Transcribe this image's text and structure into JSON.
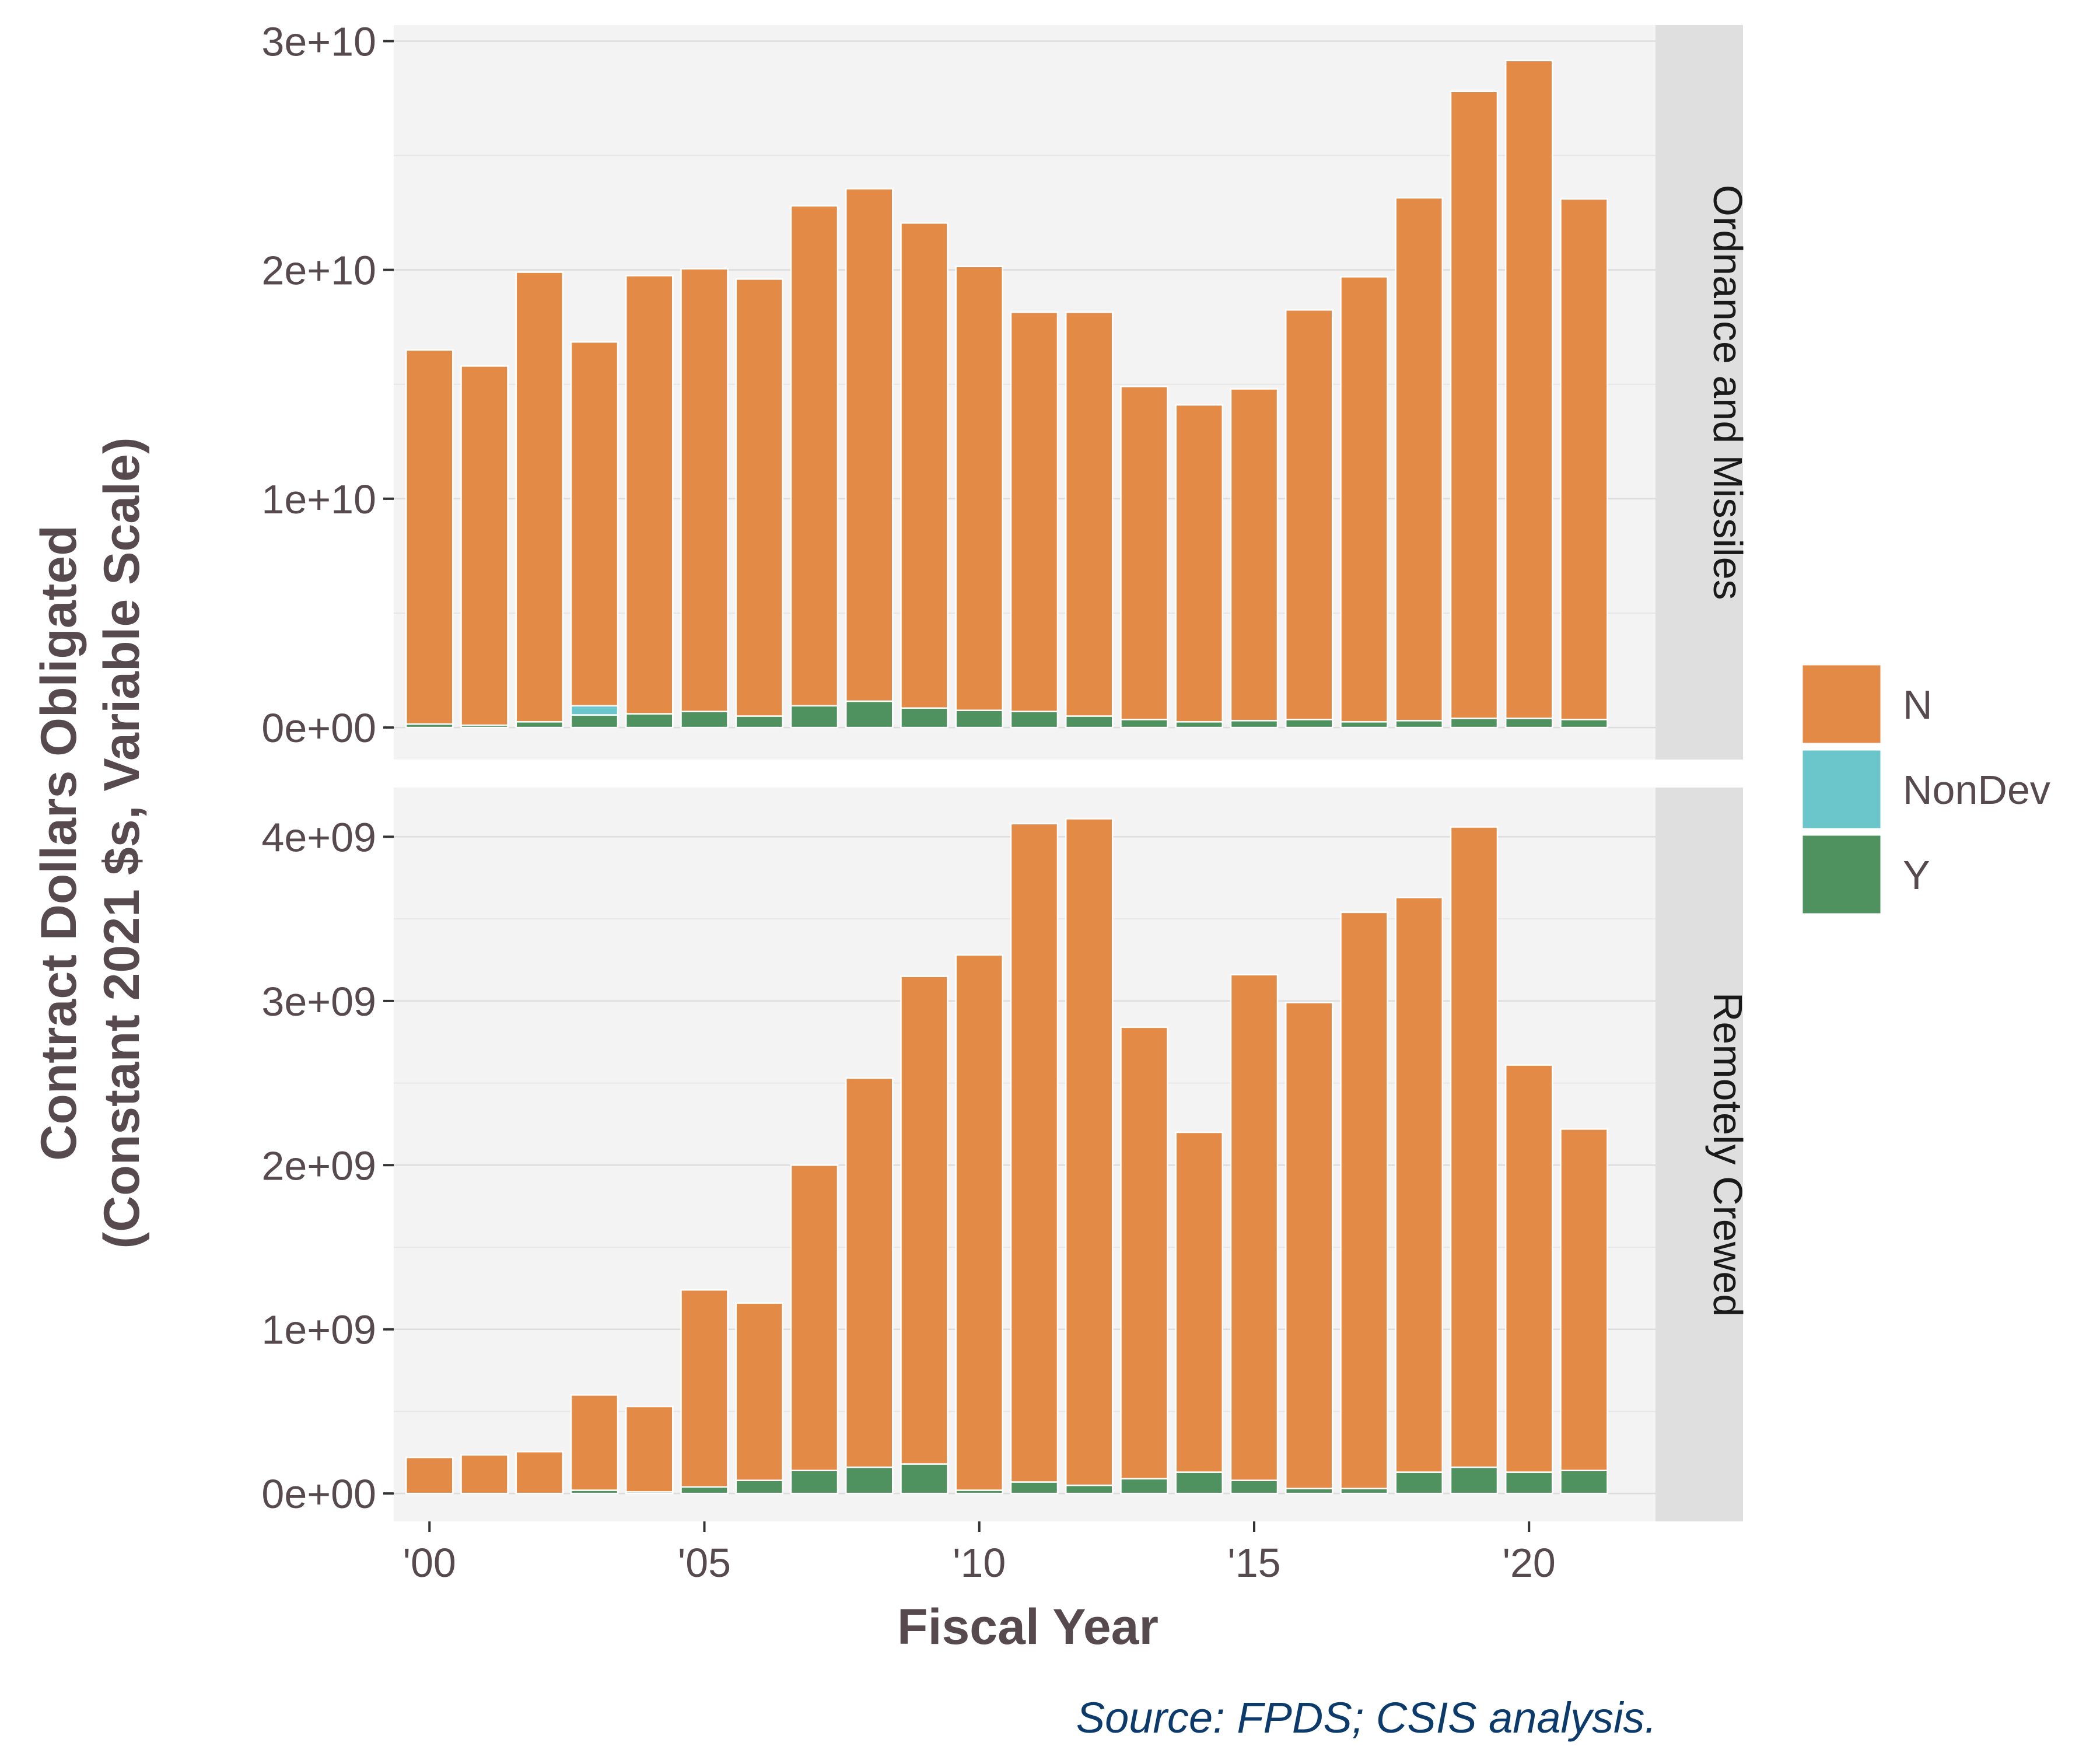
{
  "chart_data": {
    "type": "bar",
    "stacked": true,
    "xlabel": "Fiscal Year",
    "ylabel": "Contract Dollars Obligated\n(Constant 2021 $s, Variable Scale)",
    "caption": "Source: FPDS; CSIS analysis.",
    "legend_position": "right",
    "grid": true,
    "colors": {
      "N": "#E48A47",
      "NonDev": "#6AC6CB",
      "Y": "#4F9260",
      "panel_bg": "#F3F3F3",
      "strip_bg": "#DFDFDF",
      "axis_text": "#574A4F",
      "caption": "#0B3A6B"
    },
    "x": [
      2000,
      2001,
      2002,
      2003,
      2004,
      2005,
      2006,
      2007,
      2008,
      2009,
      2010,
      2011,
      2012,
      2013,
      2014,
      2015,
      2016,
      2017,
      2018,
      2019,
      2020,
      2021
    ],
    "x_ticks": [
      2000,
      2005,
      2010,
      2015,
      2020
    ],
    "x_tick_labels": [
      "'00",
      "'05",
      "'10",
      "'15",
      "'20"
    ],
    "xlim": [
      1999.35,
      2022.3
    ],
    "legend": {
      "items": [
        {
          "key": "N",
          "label": "N"
        },
        {
          "key": "NonDev",
          "label": "NonDev"
        },
        {
          "key": "Y",
          "label": "Y"
        }
      ]
    },
    "panels": [
      {
        "strip_label": "Ordnance and Missiles",
        "ylim": [
          -1400000000.0,
          30700000000.0
        ],
        "y_ticks": [
          0,
          10000000000.0,
          20000000000.0,
          30000000000.0
        ],
        "y_tick_labels": [
          "0e+00",
          "1e+10",
          "2e+10",
          "3e+10"
        ],
        "series": [
          {
            "name": "Y",
            "values": [
              150000000.0,
              100000000.0,
              250000000.0,
              550000000.0,
              600000000.0,
              700000000.0,
              500000000.0,
              950000000.0,
              1150000000.0,
              850000000.0,
              750000000.0,
              700000000.0,
              500000000.0,
              350000000.0,
              250000000.0,
              300000000.0,
              350000000.0,
              250000000.0,
              300000000.0,
              400000000.0,
              400000000.0,
              350000000.0
            ]
          },
          {
            "name": "NonDev",
            "values": [
              0,
              0,
              0,
              400000000.0,
              0,
              0,
              0,
              0,
              0,
              0,
              0,
              0,
              0,
              0,
              0,
              0,
              0,
              0,
              0,
              0,
              0,
              0
            ]
          },
          {
            "name": "N",
            "values": [
              16350000000.0,
              15700000000.0,
              19650000000.0,
              15900000000.0,
              19150000000.0,
              19350000000.0,
              19100000000.0,
              21850000000.0,
              22400000000.0,
              21200000000.0,
              19400000000.0,
              17450000000.0,
              17650000000.0,
              14550000000.0,
              13850000000.0,
              14500000000.0,
              17900000000.0,
              19450000000.0,
              22850000000.0,
              27400000000.0,
              28750000000.0,
              22750000000.0
            ]
          }
        ]
      },
      {
        "strip_label": "Remotely Crewed",
        "ylim": [
          -170000000.0,
          4300000000.0
        ],
        "y_ticks": [
          0,
          1000000000.0,
          2000000000.0,
          3000000000.0,
          4000000000.0
        ],
        "y_tick_labels": [
          "0e+00",
          "1e+09",
          "2e+09",
          "3e+09",
          "4e+09"
        ],
        "series": [
          {
            "name": "Y",
            "values": [
              0,
              0,
              0,
              20000000.0,
              10000000.0,
              40000000.0,
              80000000.0,
              140000000.0,
              160000000.0,
              180000000.0,
              20000000.0,
              70000000.0,
              50000000.0,
              90000000.0,
              130000000.0,
              80000000.0,
              30000000.0,
              30000000.0,
              130000000.0,
              160000000.0,
              130000000.0,
              140000000.0
            ]
          },
          {
            "name": "NonDev",
            "values": [
              0,
              0,
              0,
              0,
              0,
              0,
              0,
              0,
              0,
              0,
              0,
              0,
              0,
              0,
              0,
              0,
              0,
              0,
              0,
              0,
              0,
              0
            ]
          },
          {
            "name": "N",
            "values": [
              220000000.0,
              235000000.0,
              255000000.0,
              580000000.0,
              520000000.0,
              1200000000.0,
              1080000000.0,
              1860000000.0,
              2370000000.0,
              2970000000.0,
              3260000000.0,
              4010000000.0,
              4060000000.0,
              2750000000.0,
              2070000000.0,
              3080000000.0,
              2960000000.0,
              3510000000.0,
              3500000000.0,
              3900000000.0,
              2480000000.0,
              2080000000.0
            ]
          }
        ]
      }
    ]
  }
}
